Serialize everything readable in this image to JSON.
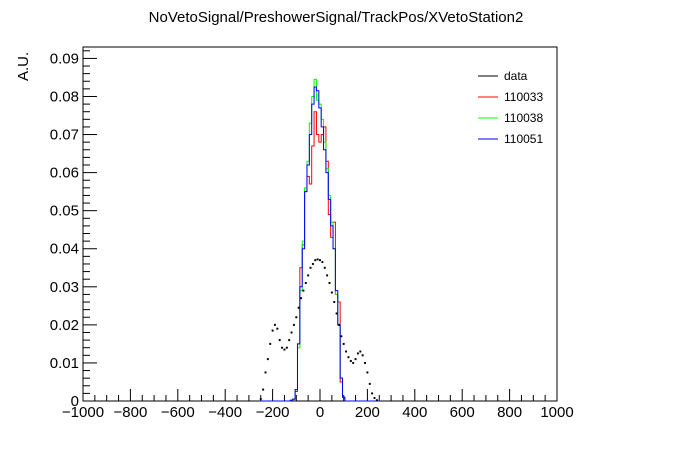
{
  "chart_data": {
    "type": "step-histogram",
    "title": "NoVetoSignal/PreshowerSignal/TrackPos/XVetoStation2",
    "xlabel": "",
    "ylabel": "A.U.",
    "xlim": [
      -1000,
      1000
    ],
    "ylim": [
      0,
      0.093
    ],
    "x_ticks": [
      -1000,
      -800,
      -600,
      -400,
      -200,
      0,
      200,
      400,
      600,
      800,
      1000
    ],
    "x_tick_labels": [
      "−1000",
      "−800",
      "−600",
      "−400",
      "−200",
      "0",
      "200",
      "400",
      "600",
      "800",
      "1000"
    ],
    "y_ticks": [
      0,
      0.01,
      0.02,
      0.03,
      0.04,
      0.05,
      0.06,
      0.07,
      0.08,
      0.09
    ],
    "y_tick_labels": [
      "0",
      "0.01",
      "0.02",
      "0.03",
      "0.04",
      "0.05",
      "0.06",
      "0.07",
      "0.08",
      "0.09"
    ],
    "grid": false,
    "legend_position": "top-right",
    "bin_width": 10,
    "x": [
      -250,
      -240,
      -230,
      -220,
      -210,
      -200,
      -190,
      -180,
      -170,
      -160,
      -150,
      -140,
      -130,
      -120,
      -110,
      -100,
      -90,
      -80,
      -70,
      -60,
      -50,
      -40,
      -30,
      -20,
      -10,
      0,
      10,
      20,
      30,
      40,
      50,
      60,
      70,
      80,
      90,
      100,
      110,
      120,
      130,
      140,
      150,
      160,
      170,
      180,
      190,
      200,
      210,
      220,
      230,
      240,
      250
    ],
    "series": [
      {
        "name": "data",
        "color": "#000000",
        "style": "points",
        "values": [
          0.0005,
          0.003,
          0.0075,
          0.011,
          0.015,
          0.0185,
          0.02,
          0.019,
          0.016,
          0.014,
          0.0135,
          0.014,
          0.016,
          0.018,
          0.02,
          0.022,
          0.0245,
          0.027,
          0.029,
          0.031,
          0.033,
          0.035,
          0.036,
          0.037,
          0.0372,
          0.037,
          0.0365,
          0.035,
          0.033,
          0.031,
          0.0285,
          0.026,
          0.023,
          0.02,
          0.017,
          0.015,
          0.013,
          0.0115,
          0.0105,
          0.01,
          0.011,
          0.0125,
          0.013,
          0.012,
          0.01,
          0.0075,
          0.0045,
          0.002,
          0.0008,
          0.0002,
          0.0
        ]
      },
      {
        "name": "110033",
        "color": "#ff0000",
        "style": "step",
        "values": [
          0,
          0,
          0,
          0,
          0,
          0,
          0,
          0,
          0,
          0,
          0,
          0,
          0,
          0.0002,
          0.0005,
          0.0025,
          0.015,
          0.035,
          0.041,
          0.055,
          0.059,
          0.057,
          0.067,
          0.076,
          0.07,
          0.068,
          0.07,
          0.072,
          0.063,
          0.049,
          0.043,
          0.047,
          0.028,
          0.026,
          0.005,
          0.001,
          0,
          0,
          0,
          0,
          0,
          0,
          0,
          0,
          0,
          0,
          0,
          0,
          0,
          0,
          0
        ]
      },
      {
        "name": "110038",
        "color": "#00ff00",
        "style": "step",
        "values": [
          0,
          0,
          0,
          0,
          0,
          0,
          0,
          0,
          0,
          0,
          0,
          0,
          0,
          0.0002,
          0.0005,
          0.003,
          0.014,
          0.029,
          0.042,
          0.056,
          0.063,
          0.073,
          0.08,
          0.0845,
          0.079,
          0.078,
          0.074,
          0.068,
          0.061,
          0.054,
          0.047,
          0.04,
          0.028,
          0.02,
          0.006,
          0.001,
          0,
          0,
          0,
          0,
          0,
          0,
          0,
          0,
          0,
          0,
          0,
          0,
          0,
          0,
          0
        ]
      },
      {
        "name": "110051",
        "color": "#0000ff",
        "style": "step",
        "values": [
          0,
          0,
          0,
          0,
          0,
          0,
          0,
          0,
          0,
          0,
          0,
          0,
          0,
          0.0002,
          0.0005,
          0.003,
          0.015,
          0.03,
          0.04,
          0.055,
          0.062,
          0.07,
          0.078,
          0.0825,
          0.0815,
          0.077,
          0.072,
          0.066,
          0.06,
          0.053,
          0.046,
          0.04,
          0.029,
          0.02,
          0.006,
          0.001,
          0,
          0,
          0,
          0,
          0,
          0,
          0,
          0,
          0,
          0,
          0,
          0,
          0,
          0,
          0
        ]
      }
    ]
  }
}
